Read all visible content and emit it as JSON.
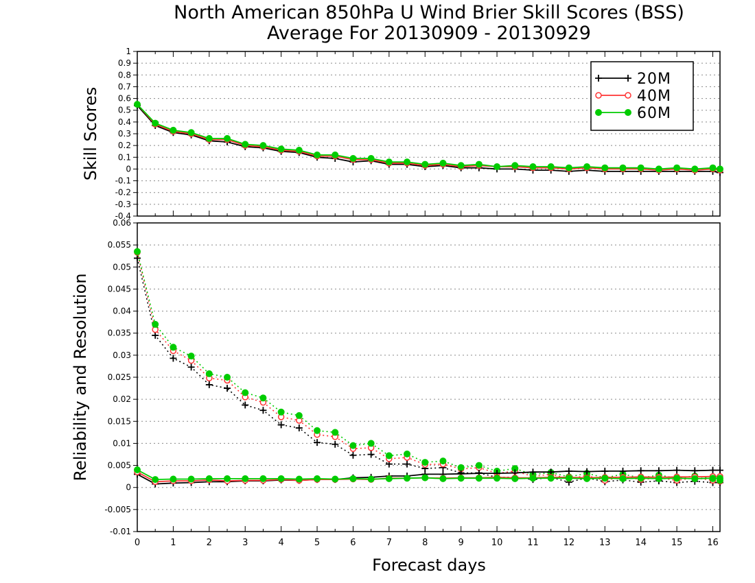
{
  "title_line1": "North American 850hPa U Wind Brier Skill Scores (BSS)",
  "title_line2": "Average For 20130909 - 20130929",
  "xlabel": "Forecast days",
  "legend": [
    {
      "label": "20M",
      "color": "#000000",
      "marker": "plus"
    },
    {
      "label": "40M",
      "color": "#ff3333",
      "marker": "open-circle"
    },
    {
      "label": "60M",
      "color": "#00cc00",
      "marker": "filled-circle"
    }
  ],
  "chart_data": [
    {
      "type": "line",
      "ylabel": "Skill Scores",
      "xlim": [
        0,
        16.2
      ],
      "ylim": [
        -0.4,
        1
      ],
      "grid": true,
      "legend_position": "top-right",
      "x_ticks": [
        "0",
        "1",
        "2",
        "3",
        "4",
        "5",
        "6",
        "7",
        "8",
        "9",
        "10",
        "11",
        "12",
        "13",
        "14",
        "15",
        "16"
      ],
      "y_ticks": [
        "1",
        "0.9",
        "0.8",
        "0.7",
        "0.6",
        "0.5",
        "0.4",
        "0.3",
        "0.2",
        "0.1",
        "0",
        "-0.1",
        "-0.2",
        "-0.3",
        "-0.4"
      ],
      "x": [
        0,
        0.5,
        1,
        1.5,
        2,
        2.5,
        3,
        3.5,
        4,
        4.5,
        5,
        5.5,
        6,
        6.5,
        7,
        7.5,
        8,
        8.5,
        9,
        9.5,
        10,
        10.5,
        11,
        11.5,
        12,
        12.5,
        13,
        13.5,
        14,
        14.5,
        15,
        15.5,
        16,
        16.2
      ],
      "series": [
        {
          "name": "20M",
          "style": "solid",
          "marker": "plus",
          "values": [
            0.54,
            0.37,
            0.31,
            0.29,
            0.24,
            0.23,
            0.19,
            0.18,
            0.15,
            0.14,
            0.1,
            0.09,
            0.06,
            0.07,
            0.04,
            0.04,
            0.02,
            0.03,
            0.01,
            0.01,
            0.0,
            0.0,
            -0.01,
            -0.01,
            -0.02,
            -0.01,
            -0.02,
            -0.02,
            -0.02,
            -0.02,
            -0.02,
            -0.02,
            -0.02,
            -0.03
          ]
        },
        {
          "name": "40M",
          "style": "solid",
          "marker": "open-circle",
          "values": [
            0.55,
            0.38,
            0.32,
            0.3,
            0.25,
            0.25,
            0.2,
            0.19,
            0.16,
            0.15,
            0.11,
            0.11,
            0.08,
            0.08,
            0.05,
            0.05,
            0.03,
            0.04,
            0.02,
            0.03,
            0.02,
            0.02,
            0.01,
            0.01,
            0.0,
            0.01,
            0.0,
            0.0,
            0.0,
            -0.01,
            0.0,
            -0.01,
            0.0,
            -0.01
          ]
        },
        {
          "name": "60M",
          "style": "solid",
          "marker": "filled-circle",
          "values": [
            0.55,
            0.39,
            0.33,
            0.31,
            0.26,
            0.26,
            0.21,
            0.2,
            0.17,
            0.16,
            0.12,
            0.12,
            0.09,
            0.09,
            0.06,
            0.06,
            0.04,
            0.05,
            0.03,
            0.04,
            0.02,
            0.03,
            0.02,
            0.02,
            0.01,
            0.02,
            0.01,
            0.01,
            0.01,
            0.0,
            0.01,
            0.0,
            0.01,
            0.0
          ]
        }
      ]
    },
    {
      "type": "line",
      "ylabel": "Reliability and Resolution",
      "xlim": [
        0,
        16.2
      ],
      "ylim": [
        -0.01,
        0.06
      ],
      "grid": true,
      "x_ticks": [
        "0",
        "1",
        "2",
        "3",
        "4",
        "5",
        "6",
        "7",
        "8",
        "9",
        "10",
        "11",
        "12",
        "13",
        "14",
        "15",
        "16"
      ],
      "y_ticks": [
        "0.06",
        "0.055",
        "0.05",
        "0.045",
        "0.04",
        "0.035",
        "0.03",
        "0.025",
        "0.02",
        "0.015",
        "0.01",
        "0.005",
        "0",
        "-0.005",
        "-0.01"
      ],
      "x": [
        0,
        0.5,
        1,
        1.5,
        2,
        2.5,
        3,
        3.5,
        4,
        4.5,
        5,
        5.5,
        6,
        6.5,
        7,
        7.5,
        8,
        8.5,
        9,
        9.5,
        10,
        10.5,
        11,
        11.5,
        12,
        12.5,
        13,
        13.5,
        14,
        14.5,
        15,
        15.5,
        16,
        16.2
      ],
      "series": [
        {
          "name": "20M",
          "quantity": "resolution",
          "style": "dotted",
          "marker": "plus",
          "values": [
            0.052,
            0.0345,
            0.0293,
            0.0273,
            0.0233,
            0.0225,
            0.0187,
            0.0175,
            0.0142,
            0.0135,
            0.0102,
            0.0098,
            0.0073,
            0.0075,
            0.0053,
            0.0053,
            0.0043,
            0.0045,
            0.0033,
            0.0033,
            0.0023,
            0.0023,
            0.0018,
            0.0023,
            0.0012,
            0.0022,
            0.0013,
            0.0017,
            0.0012,
            0.0015,
            0.0011,
            0.0014,
            0.0011,
            0.0011
          ]
        },
        {
          "name": "40M",
          "quantity": "resolution",
          "style": "dotted",
          "marker": "open-circle",
          "values": [
            0.0533,
            0.0358,
            0.031,
            0.0288,
            0.0248,
            0.0243,
            0.0205,
            0.0193,
            0.016,
            0.0152,
            0.012,
            0.0115,
            0.0088,
            0.009,
            0.0065,
            0.0068,
            0.0052,
            0.0053,
            0.0042,
            0.0045,
            0.0032,
            0.0037,
            0.0025,
            0.003,
            0.002,
            0.0027,
            0.0016,
            0.0024,
            0.0018,
            0.0022,
            0.0016,
            0.0022,
            0.0016,
            0.0014
          ]
        },
        {
          "name": "60M",
          "quantity": "resolution",
          "style": "dotted",
          "marker": "filled-circle",
          "values": [
            0.0535,
            0.037,
            0.0318,
            0.0298,
            0.0258,
            0.025,
            0.0215,
            0.0203,
            0.0171,
            0.0163,
            0.0129,
            0.0125,
            0.0095,
            0.01,
            0.0072,
            0.0076,
            0.0057,
            0.006,
            0.0045,
            0.005,
            0.0037,
            0.0043,
            0.0029,
            0.0034,
            0.0024,
            0.0032,
            0.0022,
            0.003,
            0.0022,
            0.0028,
            0.0021,
            0.0026,
            0.002,
            0.0016
          ]
        },
        {
          "name": "20M",
          "quantity": "reliability",
          "style": "solid",
          "marker": "plus",
          "values": [
            0.003,
            0.0008,
            0.001,
            0.0011,
            0.0013,
            0.0013,
            0.0015,
            0.0015,
            0.0017,
            0.0016,
            0.0018,
            0.0018,
            0.0022,
            0.0023,
            0.0026,
            0.0026,
            0.003,
            0.003,
            0.0031,
            0.0032,
            0.0032,
            0.0033,
            0.0035,
            0.0035,
            0.0037,
            0.0036,
            0.0037,
            0.0037,
            0.0038,
            0.0038,
            0.0039,
            0.0038,
            0.0039,
            0.0039
          ]
        },
        {
          "name": "40M",
          "quantity": "reliability",
          "style": "solid",
          "marker": "open-circle",
          "values": [
            0.0035,
            0.0013,
            0.0015,
            0.0015,
            0.0017,
            0.0015,
            0.0016,
            0.0016,
            0.0018,
            0.0016,
            0.0018,
            0.0018,
            0.0019,
            0.0018,
            0.0021,
            0.0021,
            0.0022,
            0.0021,
            0.0022,
            0.0022,
            0.0023,
            0.0022,
            0.0022,
            0.0023,
            0.0023,
            0.0022,
            0.0023,
            0.0023,
            0.0024,
            0.0023,
            0.0024,
            0.0024,
            0.0025,
            0.0025
          ]
        },
        {
          "name": "60M",
          "quantity": "reliability",
          "style": "solid",
          "marker": "filled-circle",
          "values": [
            0.004,
            0.0018,
            0.0019,
            0.0019,
            0.002,
            0.002,
            0.002,
            0.002,
            0.002,
            0.0019,
            0.002,
            0.0019,
            0.002,
            0.0019,
            0.002,
            0.0021,
            0.0022,
            0.002,
            0.0021,
            0.0021,
            0.0021,
            0.002,
            0.0021,
            0.0021,
            0.0021,
            0.002,
            0.0021,
            0.002,
            0.0021,
            0.002,
            0.0021,
            0.002,
            0.0021,
            0.0021
          ]
        }
      ]
    }
  ]
}
